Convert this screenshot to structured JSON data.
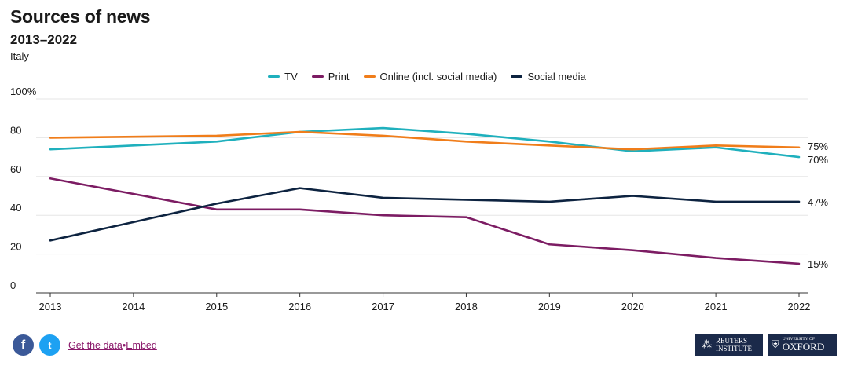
{
  "title": "Sources of news",
  "subtitle": "2013–2022",
  "region": "Italy",
  "footer": {
    "facebook_glyph": "f",
    "twitter_glyph": "t",
    "get_data": "Get the data",
    "separator": "•",
    "embed": "Embed",
    "reuters_line1": "REUTERS",
    "reuters_line2": "INSTITUTE",
    "oxford_line1": "UNIVERSITY OF",
    "oxford_line2": "OXFORD"
  },
  "chart_data": {
    "type": "line",
    "title": "Sources of news",
    "x": [
      "2013",
      "2014",
      "2015",
      "2016",
      "2017",
      "2018",
      "2019",
      "2020",
      "2021",
      "2022"
    ],
    "ylim": [
      0,
      100
    ],
    "yticks": [
      0,
      20,
      40,
      60,
      80,
      100
    ],
    "ytick_labels": [
      "0",
      "20",
      "40",
      "60",
      "80",
      "100%"
    ],
    "grid": true,
    "legend_position": "top-center",
    "series": [
      {
        "name": "TV",
        "color": "#1fb0bd",
        "values": [
          74,
          76,
          78,
          83,
          85,
          82,
          78,
          73,
          75,
          70
        ],
        "end_label": "70%"
      },
      {
        "name": "Print",
        "color": "#7c1c63",
        "values": [
          59,
          51,
          43,
          43,
          40,
          39,
          25,
          22,
          18,
          15
        ],
        "end_label": "15%"
      },
      {
        "name": "Online (incl. social media)",
        "color": "#f07d1a",
        "values": [
          80,
          80.5,
          81,
          83,
          81,
          78,
          76,
          74,
          76,
          75
        ],
        "end_label": "75%"
      },
      {
        "name": "Social media",
        "color": "#0d2340",
        "values": [
          27,
          36.5,
          46,
          54,
          49,
          48,
          47,
          50,
          47,
          47
        ],
        "end_label": "47%"
      }
    ]
  }
}
